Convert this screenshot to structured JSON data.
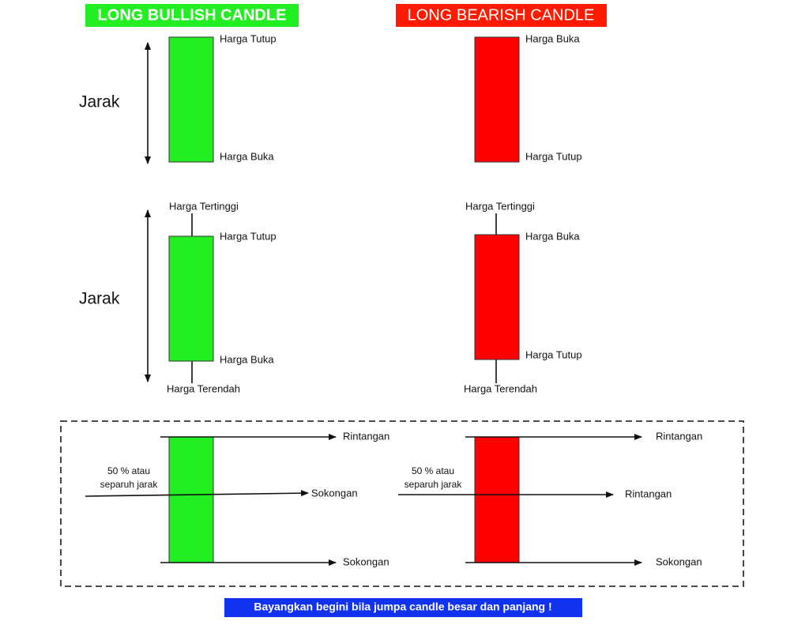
{
  "titles": {
    "bullish": "LONG BULLISH CANDLE",
    "bearish": "LONG BEARISH CANDLE"
  },
  "top": {
    "bullish": {
      "range": "Jarak",
      "upper": "Harga Tutup",
      "lower": "Harga Buka"
    },
    "bearish": {
      "upper": "Harga Buka",
      "lower": "Harga Tutup"
    }
  },
  "middle": {
    "bullish": {
      "range": "Jarak",
      "high": "Harga Tertinggi",
      "upper": "Harga Tutup",
      "lower": "Harga Buka",
      "low": "Harga Terendah"
    },
    "bearish": {
      "high": "Harga Tertinggi",
      "upper": "Harga Buka",
      "lower": "Harga Tutup",
      "low": "Harga Terendah"
    }
  },
  "bottom": {
    "bullish": {
      "note_line1": "50 % atau",
      "note_line2": "separuh jarak",
      "upper": "Rintangan",
      "middle": "Sokongan",
      "lower": "Sokongan"
    },
    "bearish": {
      "note_line1": "50 % atau",
      "note_line2": "separuh jarak",
      "upper": "Rintangan",
      "middle": "Rintangan",
      "lower": "Sokongan"
    }
  },
  "footer": "Bayangkan begini bila jumpa candle besar dan panjang !"
}
